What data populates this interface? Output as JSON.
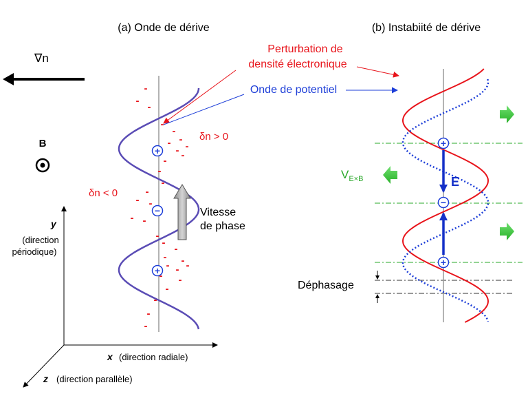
{
  "panel_a": {
    "title": "(a) Onde de dérive",
    "grad_n": "∇n",
    "b_label": "B",
    "dn_pos": "δn > 0",
    "dn_neg": "δn < 0",
    "vitesse_line1": "Vitesse",
    "vitesse_line2": "de phase",
    "plus_sign": "+",
    "minus_sign": "−",
    "electron_mark": "-"
  },
  "callouts": {
    "perturbation_line1": "Perturbation de",
    "perturbation_line2": "densité électronique",
    "onde_potentiel": "Onde de potentiel"
  },
  "panel_b": {
    "title": "(b) Instabiité de dérive",
    "vexb_main": "V",
    "vexb_sub": "E×B",
    "e_label": "E",
    "dephasage": "Déphasage"
  },
  "axes": {
    "y_var": "y",
    "y_desc1": "(direction",
    "y_desc2": "périodique)",
    "x_var": "x",
    "x_desc": "(direction radiale)",
    "z_var": "z",
    "z_desc": "(direction parallèle)"
  },
  "colors": {
    "density_wave": "#e8141b",
    "potential_wave": "#1e3fd8",
    "exb_arrows": "#33c433",
    "guides": "#2aa82a"
  }
}
